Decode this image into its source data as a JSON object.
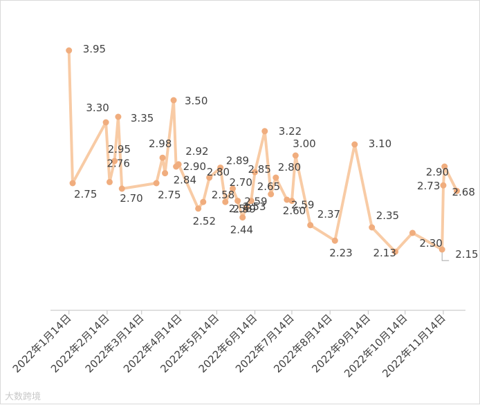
{
  "chart_data": {
    "type": "line",
    "x_type": "date",
    "xlim": [
      "2021-12-30",
      "2022-12-02"
    ],
    "ylim": [
      1.6,
      4.3
    ],
    "series": [
      {
        "color": "#f8cba5",
        "marker_color": "#f0ad7e",
        "points": [
          {
            "x": "2022-01-14",
            "y": 3.95,
            "label": "3.95"
          },
          {
            "x": "2022-01-17",
            "y": 2.75,
            "label": "2.75"
          },
          {
            "x": "2022-02-13",
            "y": 3.3,
            "label": "3.30"
          },
          {
            "x": "2022-02-16",
            "y": 2.76,
            "label": "2.76"
          },
          {
            "x": "2022-02-20",
            "y": 2.95,
            "label": "2.95"
          },
          {
            "x": "2022-02-23",
            "y": 3.35,
            "label": "3.35"
          },
          {
            "x": "2022-02-26",
            "y": 2.7,
            "label": "2.70"
          },
          {
            "x": "2022-03-26",
            "y": 2.75,
            "label": "2.75"
          },
          {
            "x": "2022-03-31",
            "y": 2.98,
            "label": "2.98"
          },
          {
            "x": "2022-04-02",
            "y": 2.84,
            "label": "2.84"
          },
          {
            "x": "2022-04-09",
            "y": 3.5,
            "label": "3.50"
          },
          {
            "x": "2022-04-11",
            "y": 2.9,
            "label": "2.90"
          },
          {
            "x": "2022-04-13",
            "y": 2.92,
            "label": "2.92"
          },
          {
            "x": "2022-04-29",
            "y": 2.52,
            "label": "2.52"
          },
          {
            "x": "2022-05-03",
            "y": 2.58,
            "label": "2.58"
          },
          {
            "x": "2022-05-08",
            "y": 2.8,
            "label": "2.80"
          },
          {
            "x": "2022-05-17",
            "y": 2.89,
            "label": "2.89"
          },
          {
            "x": "2022-05-21",
            "y": 2.58,
            "label": "2.58"
          },
          {
            "x": "2022-05-27",
            "y": 2.7,
            "label": "2.70"
          },
          {
            "x": "2022-05-31",
            "y": 2.59,
            "label": "2.59"
          },
          {
            "x": "2022-06-04",
            "y": 2.44,
            "label": "2.44"
          },
          {
            "x": "2022-06-07",
            "y": 2.53,
            "label": "2.53"
          },
          {
            "x": "2022-06-11",
            "y": 2.59,
            "label": "2.59"
          },
          {
            "x": "2022-06-14",
            "y": 2.85,
            "label": "2.85"
          },
          {
            "x": "2022-06-22",
            "y": 3.22,
            "label": "3.22"
          },
          {
            "x": "2022-06-27",
            "y": 2.65,
            "label": "2.65"
          },
          {
            "x": "2022-07-01",
            "y": 2.8,
            "label": "2.80"
          },
          {
            "x": "2022-07-10",
            "y": 2.6,
            "label": "2.60"
          },
          {
            "x": "2022-07-14",
            "y": 2.59,
            "label": "2.59"
          },
          {
            "x": "2022-07-17",
            "y": 3.0,
            "label": "3.00"
          },
          {
            "x": "2022-07-29",
            "y": 2.37,
            "label": "2.37"
          },
          {
            "x": "2022-08-18",
            "y": 2.23,
            "label": "2.23"
          },
          {
            "x": "2022-09-03",
            "y": 3.1,
            "label": "3.10"
          },
          {
            "x": "2022-09-17",
            "y": 2.35,
            "label": "2.35"
          },
          {
            "x": "2022-10-06",
            "y": 2.13,
            "label": "2.13"
          },
          {
            "x": "2022-10-20",
            "y": 2.3,
            "label": "2.30"
          },
          {
            "x": "2022-11-13",
            "y": 2.15,
            "label": "2.15"
          },
          {
            "x": "2022-11-14",
            "y": 2.73,
            "label": "2.73"
          },
          {
            "x": "2022-11-15",
            "y": 2.9,
            "label": "2.90"
          },
          {
            "x": "2022-11-25",
            "y": 2.68,
            "label": "2.68"
          }
        ]
      }
    ],
    "x_ticks": [
      {
        "date": "2022-01-14",
        "label": "2022年1月14日"
      },
      {
        "date": "2022-02-14",
        "label": "2022年2月14日"
      },
      {
        "date": "2022-03-14",
        "label": "2022年3月14日"
      },
      {
        "date": "2022-04-14",
        "label": "2022年4月14日"
      },
      {
        "date": "2022-05-14",
        "label": "2022年5月14日"
      },
      {
        "date": "2022-06-14",
        "label": "2022年6月14日"
      },
      {
        "date": "2022-07-14",
        "label": "2022年7月14日"
      },
      {
        "date": "2022-08-14",
        "label": "2022年8月14日"
      },
      {
        "date": "2022-09-14",
        "label": "2022年9月14日"
      },
      {
        "date": "2022-10-14",
        "label": "2022年10月14日"
      },
      {
        "date": "2022-11-14",
        "label": "2022年11月14日"
      }
    ],
    "grid": false,
    "legend": "none"
  },
  "watermark": "大数跨境"
}
